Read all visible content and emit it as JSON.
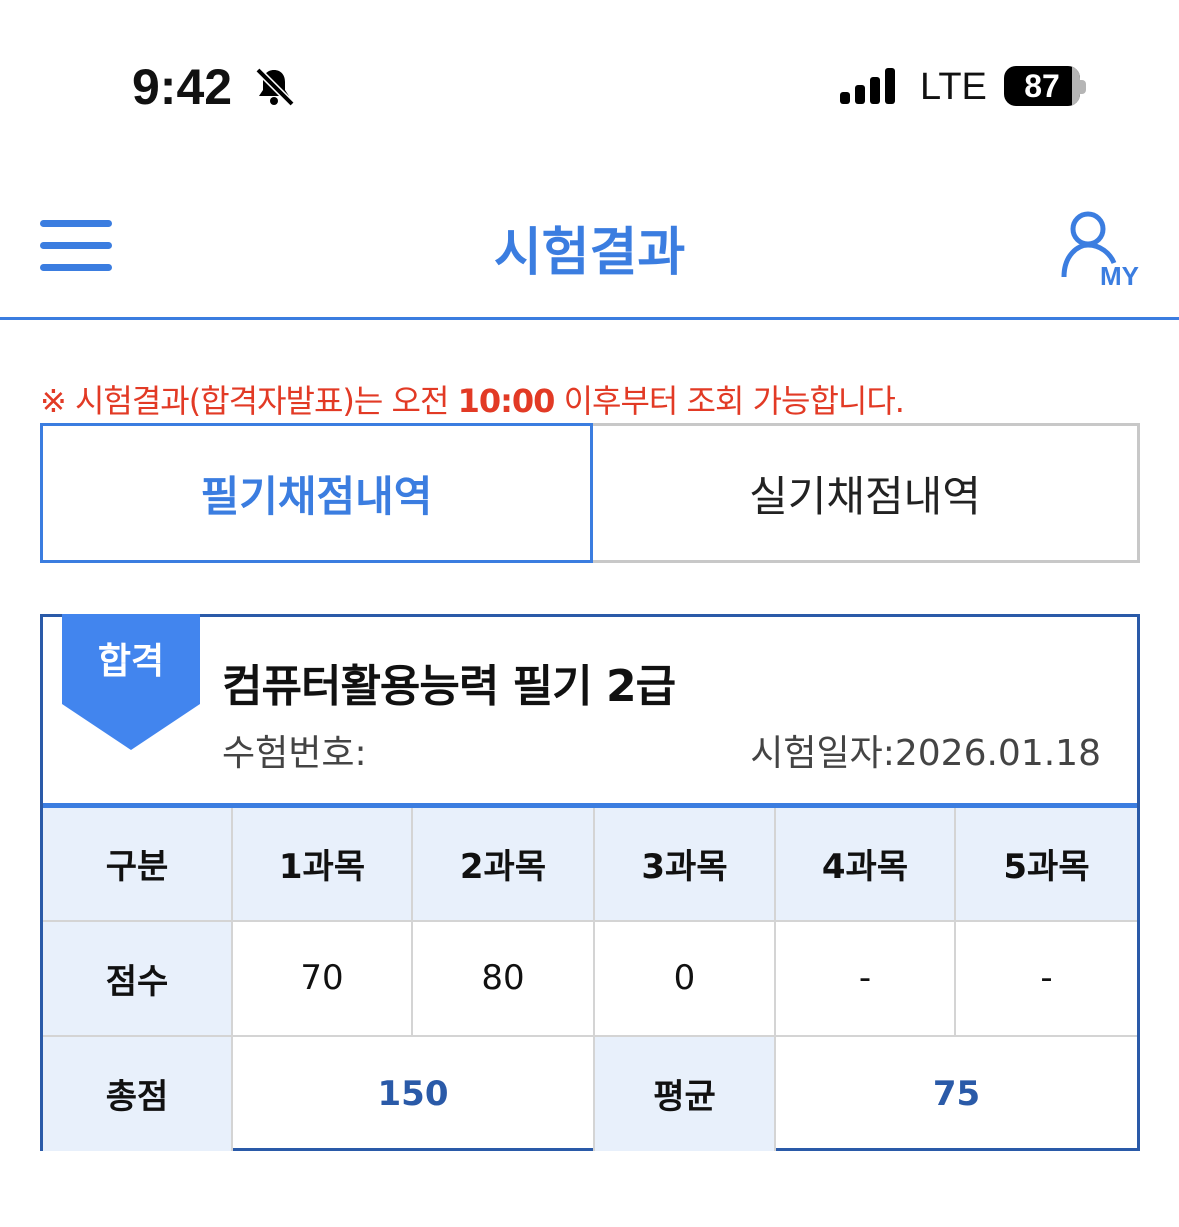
{
  "status_bar": {
    "time": "9:42",
    "network": "LTE",
    "battery": "87",
    "icons": [
      "bell-slash-icon",
      "signal-icon",
      "battery-icon"
    ]
  },
  "header": {
    "title": "시험결과",
    "my_label": "MY",
    "icons": [
      "menu-icon",
      "user-icon"
    ]
  },
  "notice": {
    "prefix": "※ 시험결과(합격자발표)는 오전 ",
    "time": "10:00",
    "suffix": " 이후부터 조회 가능합니다."
  },
  "tabs": [
    {
      "label": "필기채점내역",
      "active": true
    },
    {
      "label": "실기채점내역",
      "active": false
    }
  ],
  "result": {
    "badge": "합격",
    "exam_name": "컴퓨터활용능력 필기 2급",
    "exam_number_label": "수험번호:",
    "exam_date": "시험일자:2026.01.18",
    "table": {
      "header": [
        "구분",
        "1과목",
        "2과목",
        "3과목",
        "4과목",
        "5과목"
      ],
      "score_row": {
        "label": "점수",
        "values": [
          "70",
          "80",
          "0",
          "-",
          "-"
        ]
      },
      "total_label": "총점",
      "total": "150",
      "average_label": "평균",
      "average": "75"
    }
  },
  "colors": {
    "accent": "#3b7de0",
    "notice": "#e23a25",
    "card_border": "#2a5aa8",
    "header_bg": "#e8f0fb"
  }
}
